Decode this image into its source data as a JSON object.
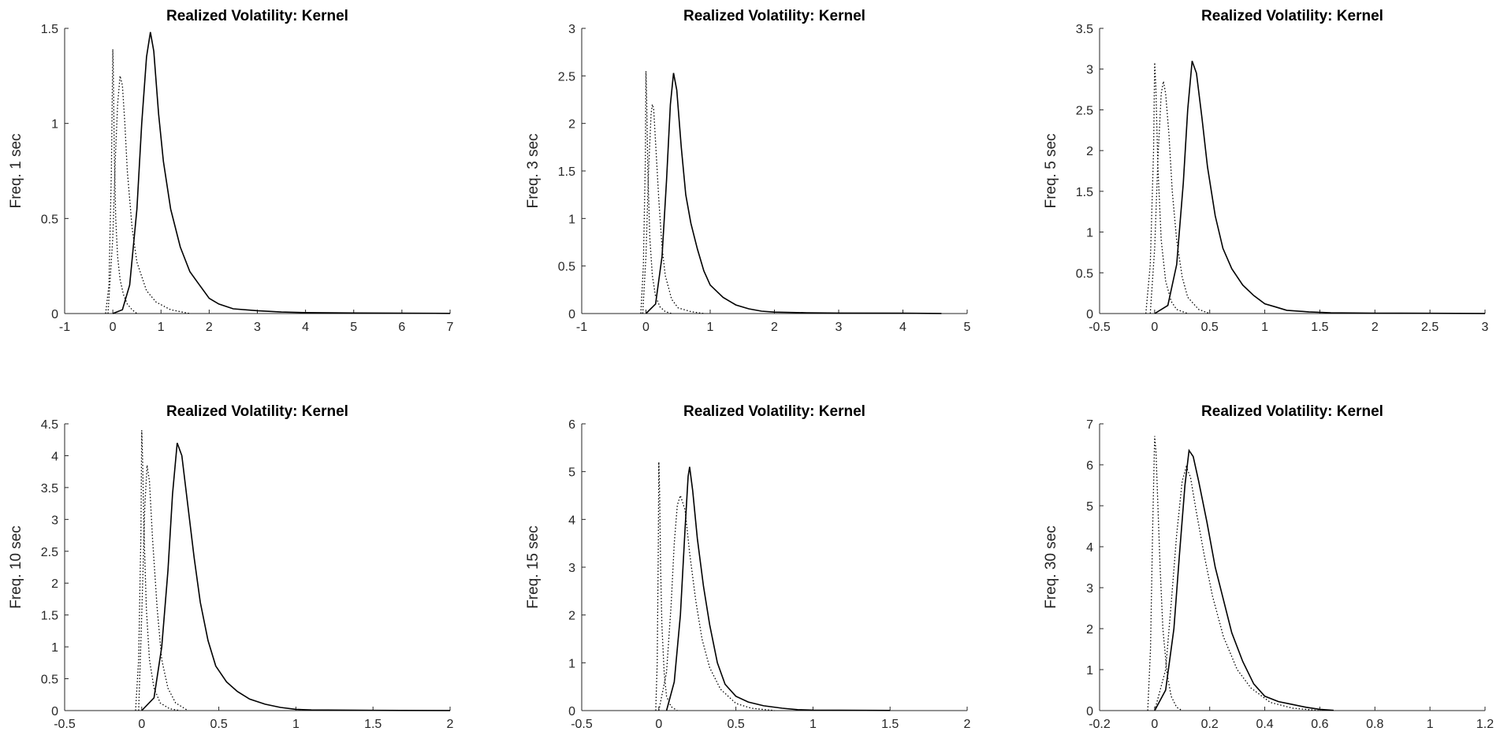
{
  "colors": {
    "background": "#ffffff",
    "axis": "#262626",
    "series": "#000000"
  },
  "chart_data": [
    {
      "type": "line",
      "title": "Realized Volatility: Kernel",
      "xlabel": "",
      "ylabel": "Freq. 1 sec",
      "xlim": [
        -1,
        7
      ],
      "ylim": [
        0,
        1.5
      ],
      "xticks": [
        -1,
        0,
        1,
        2,
        3,
        4,
        5,
        6,
        7
      ],
      "yticks": [
        0,
        0.5,
        1,
        1.5
      ],
      "series": [
        {
          "style": "dotted",
          "x": [
            -0.15,
            -0.08,
            -0.03,
            0.0,
            0.01,
            0.03,
            0.06,
            0.1,
            0.15,
            0.22,
            0.3,
            0.4,
            0.5
          ],
          "y": [
            0,
            0.15,
            0.75,
            1.39,
            1.3,
            0.85,
            0.5,
            0.3,
            0.18,
            0.1,
            0.05,
            0.02,
            0
          ]
        },
        {
          "style": "dotted",
          "x": [
            -0.1,
            0.0,
            0.05,
            0.1,
            0.15,
            0.2,
            0.25,
            0.3,
            0.4,
            0.5,
            0.7,
            0.9,
            1.2,
            1.6
          ],
          "y": [
            0,
            0.4,
            0.8,
            1.1,
            1.25,
            1.2,
            1.0,
            0.75,
            0.45,
            0.27,
            0.12,
            0.06,
            0.02,
            0
          ]
        },
        {
          "style": "solid",
          "x": [
            0.0,
            0.2,
            0.35,
            0.5,
            0.6,
            0.7,
            0.78,
            0.85,
            0.95,
            1.05,
            1.2,
            1.4,
            1.6,
            1.8,
            2.0,
            2.2,
            2.5,
            3.0,
            3.5,
            4.0,
            5.0,
            6.0,
            7.0
          ],
          "y": [
            0,
            0.02,
            0.15,
            0.55,
            1.0,
            1.35,
            1.48,
            1.38,
            1.05,
            0.8,
            0.55,
            0.35,
            0.22,
            0.15,
            0.08,
            0.05,
            0.025,
            0.015,
            0.008,
            0.005,
            0.003,
            0.002,
            0.001
          ]
        }
      ]
    },
    {
      "type": "line",
      "title": "Realized Volatility: Kernel",
      "xlabel": "",
      "ylabel": "Freq. 3 sec",
      "xlim": [
        -1,
        5
      ],
      "ylim": [
        0,
        3
      ],
      "xticks": [
        -1,
        0,
        1,
        2,
        3,
        4,
        5
      ],
      "yticks": [
        0,
        0.5,
        1,
        1.5,
        2,
        2.5,
        3
      ],
      "series": [
        {
          "style": "dotted",
          "x": [
            -0.08,
            -0.04,
            -0.01,
            0.0,
            0.01,
            0.03,
            0.06,
            0.1,
            0.15,
            0.22,
            0.3,
            0.4
          ],
          "y": [
            0,
            0.5,
            1.6,
            2.55,
            2.3,
            1.5,
            0.8,
            0.4,
            0.18,
            0.07,
            0.02,
            0
          ]
        },
        {
          "style": "dotted",
          "x": [
            -0.05,
            0.0,
            0.04,
            0.08,
            0.1,
            0.12,
            0.15,
            0.2,
            0.25,
            0.3,
            0.4,
            0.5,
            0.7,
            0.9
          ],
          "y": [
            0,
            0.6,
            1.5,
            2.1,
            2.2,
            2.15,
            1.8,
            1.2,
            0.7,
            0.4,
            0.15,
            0.06,
            0.02,
            0
          ]
        },
        {
          "style": "solid",
          "x": [
            0.0,
            0.15,
            0.25,
            0.32,
            0.38,
            0.43,
            0.48,
            0.55,
            0.62,
            0.7,
            0.8,
            0.9,
            1.0,
            1.2,
            1.4,
            1.6,
            1.8,
            2.0,
            2.5,
            3.0,
            4.0,
            4.6
          ],
          "y": [
            0,
            0.1,
            0.6,
            1.4,
            2.2,
            2.53,
            2.35,
            1.75,
            1.25,
            0.95,
            0.68,
            0.45,
            0.3,
            0.17,
            0.09,
            0.05,
            0.025,
            0.015,
            0.008,
            0.005,
            0.003,
            0.001
          ]
        }
      ]
    },
    {
      "type": "line",
      "title": "Realized Volatility: Kernel",
      "xlabel": "",
      "ylabel": "Freq. 5 sec",
      "xlim": [
        -0.5,
        3
      ],
      "ylim": [
        0,
        3.5
      ],
      "xticks": [
        -0.5,
        0,
        0.5,
        1,
        1.5,
        2,
        2.5,
        3
      ],
      "yticks": [
        0,
        0.5,
        1,
        1.5,
        2,
        2.5,
        3,
        3.5
      ],
      "series": [
        {
          "style": "dotted",
          "x": [
            -0.08,
            -0.04,
            -0.01,
            0.0,
            0.01,
            0.03,
            0.06,
            0.1,
            0.15,
            0.2,
            0.3
          ],
          "y": [
            0,
            0.6,
            2.0,
            3.08,
            2.8,
            1.8,
            0.9,
            0.4,
            0.15,
            0.05,
            0
          ]
        },
        {
          "style": "dotted",
          "x": [
            -0.04,
            0.0,
            0.03,
            0.06,
            0.08,
            0.1,
            0.13,
            0.16,
            0.2,
            0.25,
            0.3,
            0.4,
            0.5
          ],
          "y": [
            0,
            0.8,
            1.9,
            2.7,
            2.85,
            2.7,
            2.2,
            1.5,
            0.9,
            0.45,
            0.2,
            0.05,
            0
          ]
        },
        {
          "style": "solid",
          "x": [
            0.0,
            0.12,
            0.2,
            0.26,
            0.3,
            0.34,
            0.38,
            0.43,
            0.48,
            0.55,
            0.62,
            0.7,
            0.8,
            0.9,
            1.0,
            1.1,
            1.2,
            1.4,
            1.6,
            2.0,
            2.5,
            3.0
          ],
          "y": [
            0,
            0.1,
            0.6,
            1.6,
            2.5,
            3.1,
            2.95,
            2.4,
            1.8,
            1.2,
            0.8,
            0.55,
            0.35,
            0.22,
            0.12,
            0.08,
            0.04,
            0.02,
            0.01,
            0.005,
            0.003,
            0.001
          ]
        }
      ]
    },
    {
      "type": "line",
      "title": "Realized Volatility: Kernel",
      "xlabel": "",
      "ylabel": "Freq. 10 sec",
      "xlim": [
        -0.5,
        2
      ],
      "ylim": [
        0,
        4.5
      ],
      "xticks": [
        -0.5,
        0,
        0.5,
        1,
        1.5,
        2
      ],
      "yticks": [
        0,
        0.5,
        1,
        1.5,
        2,
        2.5,
        3,
        3.5,
        4,
        4.5
      ],
      "series": [
        {
          "style": "dotted",
          "x": [
            -0.04,
            -0.02,
            -0.005,
            0.0,
            0.005,
            0.015,
            0.03,
            0.05,
            0.08,
            0.12,
            0.18,
            0.25
          ],
          "y": [
            0,
            0.8,
            2.8,
            4.4,
            4.0,
            2.8,
            1.6,
            0.8,
            0.35,
            0.12,
            0.03,
            0
          ]
        },
        {
          "style": "dotted",
          "x": [
            -0.02,
            0.0,
            0.02,
            0.035,
            0.05,
            0.07,
            0.1,
            0.13,
            0.17,
            0.22,
            0.3
          ],
          "y": [
            0,
            1.5,
            3.2,
            3.85,
            3.6,
            2.7,
            1.6,
            0.8,
            0.35,
            0.12,
            0
          ]
        },
        {
          "style": "solid",
          "x": [
            0.0,
            0.08,
            0.13,
            0.17,
            0.2,
            0.23,
            0.26,
            0.3,
            0.34,
            0.38,
            0.43,
            0.48,
            0.55,
            0.62,
            0.7,
            0.8,
            0.9,
            1.0,
            1.1,
            1.5,
            2.0
          ],
          "y": [
            0,
            0.2,
            1.0,
            2.2,
            3.4,
            4.2,
            4.0,
            3.2,
            2.4,
            1.7,
            1.1,
            0.7,
            0.45,
            0.3,
            0.18,
            0.1,
            0.05,
            0.02,
            0.01,
            0.004,
            0.001
          ]
        }
      ]
    },
    {
      "type": "line",
      "title": "Realized Volatility: Kernel",
      "xlabel": "",
      "ylabel": "Freq. 15 sec",
      "xlim": [
        -0.5,
        2
      ],
      "ylim": [
        0,
        6
      ],
      "xticks": [
        -0.5,
        0,
        0.5,
        1,
        1.5,
        2
      ],
      "yticks": [
        0,
        1,
        2,
        3,
        4,
        5,
        6
      ],
      "series": [
        {
          "style": "dotted",
          "x": [
            -0.02,
            -0.01,
            -0.003,
            0.0,
            0.005,
            0.012,
            0.02,
            0.035,
            0.05,
            0.08,
            0.12
          ],
          "y": [
            0,
            1.0,
            3.5,
            5.2,
            4.6,
            3.0,
            1.8,
            0.8,
            0.3,
            0.08,
            0
          ]
        },
        {
          "style": "dotted",
          "x": [
            0.0,
            0.05,
            0.08,
            0.1,
            0.12,
            0.14,
            0.17,
            0.2,
            0.24,
            0.28,
            0.33,
            0.4,
            0.5,
            0.6,
            0.75
          ],
          "y": [
            0,
            0.8,
            2.2,
            3.5,
            4.3,
            4.5,
            4.2,
            3.3,
            2.3,
            1.5,
            0.9,
            0.45,
            0.15,
            0.05,
            0
          ]
        },
        {
          "style": "solid",
          "x": [
            0.05,
            0.1,
            0.14,
            0.17,
            0.19,
            0.2,
            0.22,
            0.25,
            0.29,
            0.33,
            0.38,
            0.43,
            0.5,
            0.58,
            0.68,
            0.8,
            0.9,
            1.0,
            1.5
          ],
          "y": [
            0,
            0.6,
            2.0,
            3.8,
            4.9,
            5.1,
            4.6,
            3.6,
            2.6,
            1.8,
            1.0,
            0.55,
            0.3,
            0.18,
            0.1,
            0.05,
            0.02,
            0.01,
            0.003
          ]
        }
      ]
    },
    {
      "type": "line",
      "title": "Realized Volatility: Kernel",
      "xlabel": "",
      "ylabel": "Freq. 30 sec",
      "xlim": [
        -0.2,
        1.2
      ],
      "ylim": [
        0,
        7
      ],
      "xticks": [
        -0.2,
        0,
        0.2,
        0.4,
        0.6,
        0.8,
        1,
        1.2
      ],
      "yticks": [
        0,
        1,
        2,
        3,
        4,
        5,
        6,
        7
      ],
      "series": [
        {
          "style": "dotted",
          "x": [
            -0.025,
            -0.015,
            -0.007,
            0.0,
            0.005,
            0.012,
            0.02,
            0.03,
            0.045,
            0.06,
            0.08,
            0.1
          ],
          "y": [
            0,
            1.5,
            4.5,
            6.7,
            6.3,
            5.0,
            3.5,
            2.0,
            0.9,
            0.35,
            0.08,
            0
          ]
        },
        {
          "style": "dotted",
          "x": [
            0.0,
            0.04,
            0.06,
            0.08,
            0.1,
            0.115,
            0.13,
            0.15,
            0.18,
            0.21,
            0.25,
            0.3,
            0.35,
            0.42,
            0.5,
            0.6
          ],
          "y": [
            0,
            1.0,
            2.6,
            4.3,
            5.6,
            5.95,
            5.7,
            4.9,
            3.8,
            2.8,
            1.8,
            1.0,
            0.55,
            0.2,
            0.06,
            0
          ]
        },
        {
          "style": "solid",
          "x": [
            0.0,
            0.04,
            0.07,
            0.09,
            0.11,
            0.125,
            0.14,
            0.16,
            0.19,
            0.22,
            0.25,
            0.28,
            0.32,
            0.36,
            0.4,
            0.45,
            0.5,
            0.55,
            0.6,
            0.65
          ],
          "y": [
            0,
            0.5,
            2.0,
            3.8,
            5.5,
            6.35,
            6.2,
            5.6,
            4.6,
            3.5,
            2.7,
            1.9,
            1.2,
            0.65,
            0.35,
            0.22,
            0.15,
            0.08,
            0.03,
            0.005
          ]
        }
      ]
    }
  ]
}
